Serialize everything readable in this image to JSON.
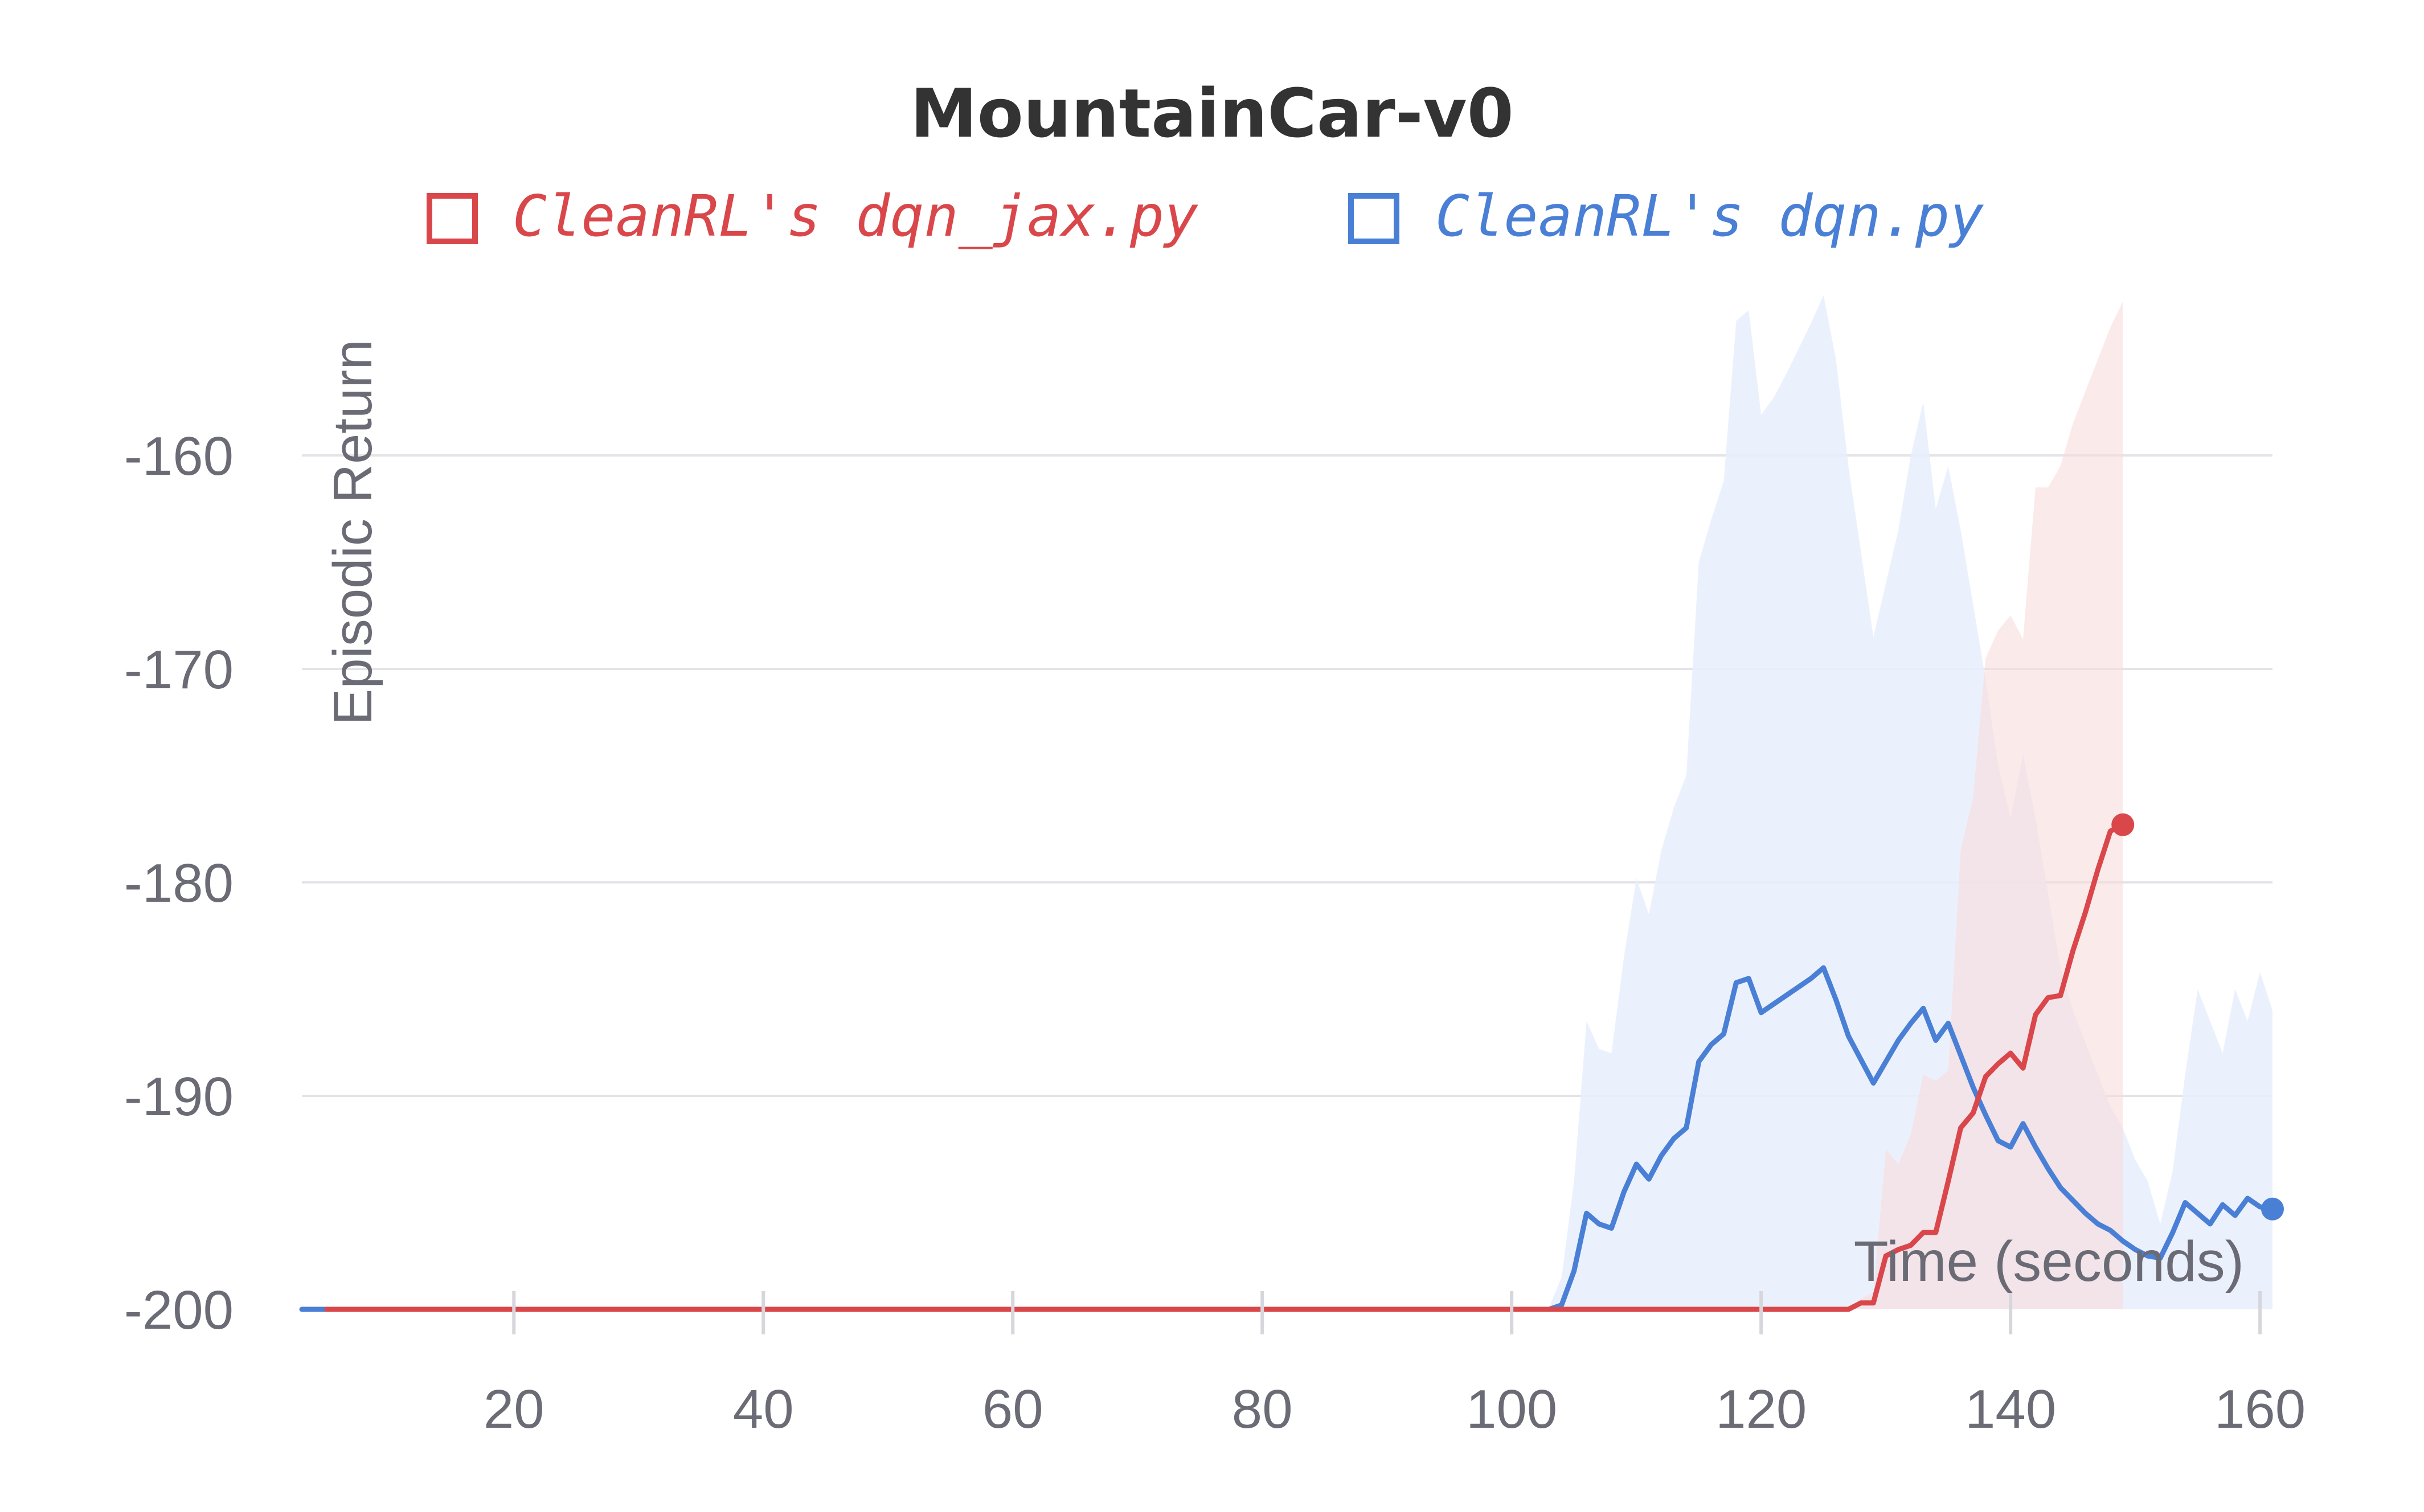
{
  "chart_data": {
    "type": "line",
    "title": "MountainCar-v0",
    "xlabel": "Time (seconds)",
    "ylabel": "Episodic Return",
    "xlim": [
      3,
      161
    ],
    "ylim": [
      -200,
      -152
    ],
    "x_ticks": [
      20,
      40,
      60,
      80,
      100,
      120,
      140,
      160
    ],
    "y_ticks": [
      -160,
      -170,
      -180,
      -190,
      -200
    ],
    "grid": true,
    "legend_position": "top",
    "series": [
      {
        "name": "CleanRL's dqn_jax.py",
        "color": "#d9474b",
        "band_color": "#f9dcdc",
        "x": [
          5,
          20,
          40,
          60,
          80,
          100,
          120,
          127,
          128,
          129,
          130,
          131,
          132,
          133,
          134,
          135,
          136,
          137,
          138,
          139,
          140,
          141,
          142,
          143,
          144,
          145,
          146,
          147,
          148,
          149
        ],
        "y": [
          -200,
          -200,
          -200,
          -200,
          -200,
          -200,
          -200,
          -200,
          -199.7,
          -199.7,
          -197.5,
          -197.2,
          -197,
          -196.4,
          -196.4,
          -194,
          -191.5,
          -190.8,
          -189.1,
          -188.5,
          -188,
          -188.7,
          -186.2,
          -185.4,
          -185.3,
          -183.2,
          -181.4,
          -179.4,
          -177.6,
          -177.3
        ],
        "upper": [
          -200,
          -200,
          -200,
          -200,
          -200,
          -200,
          -200,
          -200,
          -199.5,
          -199.2,
          -192.5,
          -193.2,
          -191.8,
          -189,
          -189.3,
          -188.8,
          -178.5,
          -176,
          -169.5,
          -168.2,
          -167.5,
          -168.6,
          -161.5,
          -161.5,
          -160.5,
          -158.5,
          -157,
          -155.5,
          -154,
          -152.8
        ],
        "lower": [
          -200,
          -200,
          -200,
          -200,
          -200,
          -200,
          -200,
          -200,
          -200,
          -200,
          -200,
          -200,
          -200,
          -200,
          -200,
          -200,
          -200,
          -200,
          -200,
          -200,
          -200,
          -200,
          -200,
          -200,
          -200,
          -200,
          -200,
          -200,
          -200,
          -200
        ],
        "end_marker": true
      },
      {
        "name": "CleanRL's dqn.py",
        "color": "#4a7fd6",
        "band_color": "#e8eefb",
        "x": [
          3,
          5,
          20,
          40,
          60,
          80,
          100,
          103,
          104,
          105,
          106,
          107,
          108,
          109,
          110,
          111,
          112,
          113,
          114,
          115,
          116,
          117,
          118,
          119,
          120,
          121,
          122,
          123,
          124,
          125,
          126,
          127,
          128,
          129,
          130,
          131,
          132,
          133,
          134,
          135,
          136,
          137,
          138,
          139,
          140,
          141,
          142,
          143,
          144,
          145,
          146,
          147,
          148,
          149,
          150,
          151,
          152,
          153,
          154,
          155,
          156,
          157,
          158,
          159,
          160,
          161
        ],
        "y": [
          -200,
          -200,
          -200,
          -200,
          -200,
          -200,
          -200,
          -200,
          -199.8,
          -198.2,
          -195.5,
          -196,
          -196.2,
          -194.5,
          -193.2,
          -193.9,
          -192.8,
          -192,
          -191.5,
          -188.4,
          -187.6,
          -187.1,
          -184.7,
          -184.5,
          -186.1,
          -185.7,
          -185.3,
          -184.9,
          -184.5,
          -184,
          -185.5,
          -187.2,
          -188.3,
          -189.4,
          -188.4,
          -187.4,
          -186.6,
          -185.9,
          -187.4,
          -186.6,
          -188.1,
          -189.6,
          -190.9,
          -192.1,
          -192.4,
          -191.3,
          -192.4,
          -193.4,
          -194.3,
          -194.9,
          -195.5,
          -196,
          -196.3,
          -196.8,
          -197.2,
          -197.5,
          -197.6,
          -196.4,
          -195,
          -195.5,
          -196,
          -195.1,
          -195.6,
          -194.8,
          -195.2,
          -195.3
        ],
        "upper": [
          -200,
          -200,
          -200,
          -200,
          -200,
          -200,
          -200,
          -199.9,
          -198.5,
          -194,
          -186.5,
          -187.8,
          -188,
          -183.5,
          -179.8,
          -181.5,
          -178.5,
          -176.5,
          -175,
          -165,
          -163,
          -161.2,
          -153.7,
          -153.2,
          -158.1,
          -157.3,
          -156.2,
          -155,
          -153.8,
          -152.5,
          -155.5,
          -160.5,
          -164.5,
          -168.5,
          -166,
          -163.5,
          -160,
          -157.5,
          -162.5,
          -160.5,
          -163.5,
          -167,
          -170.5,
          -174.5,
          -177,
          -174,
          -177,
          -180.5,
          -184,
          -186,
          -187.5,
          -189,
          -190.5,
          -191.5,
          -193,
          -194,
          -196,
          -193.5,
          -189,
          -185,
          -186.5,
          -188,
          -185,
          -186.5,
          -184.2,
          -186
        ],
        "lower": [
          -200,
          -200,
          -200,
          -200,
          -200,
          -200,
          -200,
          -200,
          -200,
          -200,
          -200,
          -200,
          -200,
          -200,
          -200,
          -200,
          -200,
          -200,
          -200,
          -200,
          -200,
          -200,
          -200,
          -200,
          -200,
          -200,
          -200,
          -200,
          -200,
          -200,
          -200,
          -200,
          -200,
          -200,
          -200,
          -200,
          -200,
          -200,
          -200,
          -200,
          -200,
          -200,
          -200,
          -200,
          -200,
          -200,
          -200,
          -200,
          -200,
          -200,
          -200,
          -200,
          -200,
          -200,
          -200,
          -200,
          -200,
          -200,
          -200,
          -200,
          -200,
          -200,
          -200,
          -200,
          -200,
          -200
        ],
        "end_marker": true
      }
    ]
  }
}
